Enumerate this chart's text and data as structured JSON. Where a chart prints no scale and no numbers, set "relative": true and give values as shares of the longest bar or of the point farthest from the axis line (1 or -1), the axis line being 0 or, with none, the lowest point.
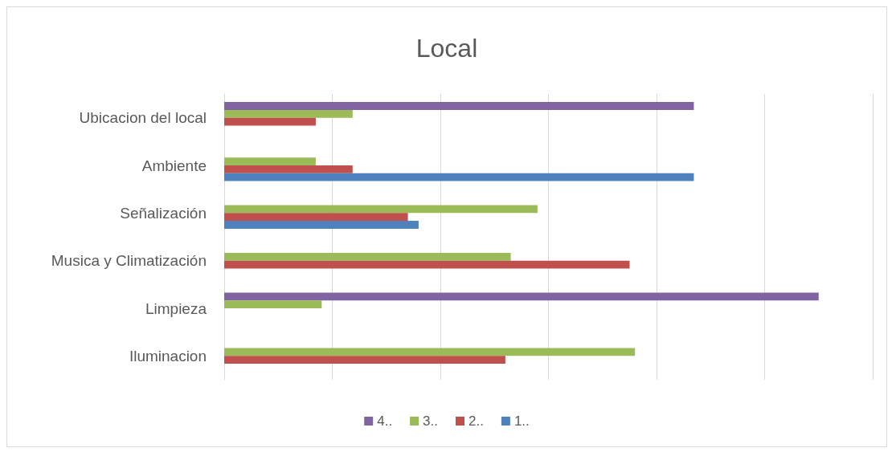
{
  "chart_data": {
    "type": "bar",
    "title": "Local",
    "orientation": "horizontal",
    "relative": true,
    "grid": "x",
    "legend": "bottom",
    "categories": [
      "Ubicacion del local",
      "Ambiente",
      "Señalización",
      "Musica y Climatización",
      "Limpieza",
      "Iluminacion"
    ],
    "series": [
      {
        "name": "4..",
        "color": "#8064a2",
        "values": [
          0.79,
          null,
          null,
          null,
          1,
          null
        ]
      },
      {
        "name": "3..",
        "color": "#9bbb59",
        "values": [
          0.216,
          0.154,
          0.527,
          0.482,
          0.164,
          0.691
        ]
      },
      {
        "name": "2..",
        "color": "#c0504d",
        "values": [
          0.154,
          0.216,
          0.309,
          0.682,
          null,
          0.473
        ]
      },
      {
        "name": "1..",
        "color": "#4f81bd",
        "values": [
          null,
          0.79,
          0.327,
          null,
          null,
          null
        ]
      }
    ]
  }
}
